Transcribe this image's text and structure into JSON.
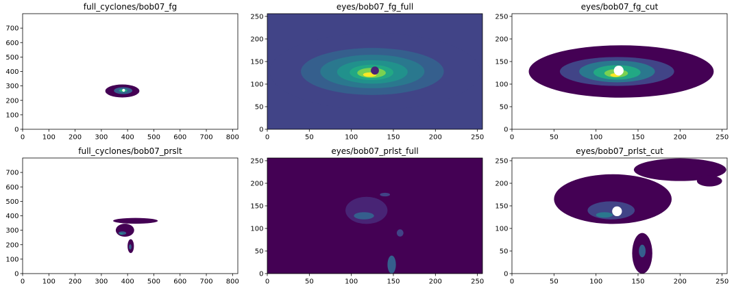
{
  "colors": {
    "background": "#ffffff",
    "axis": "#000000",
    "viridis_levels": [
      "#440154",
      "#482475",
      "#414487",
      "#355f8d",
      "#2a788e",
      "#21918c",
      "#22a884",
      "#44bf70",
      "#7ad151",
      "#bddf26",
      "#fde725"
    ]
  },
  "chart_data": [
    {
      "type": "contour",
      "title": "full_cyclones/bob07_fg",
      "xlabel": "",
      "ylabel": "",
      "xlim": [
        0,
        820
      ],
      "ylim": [
        0,
        800
      ],
      "xticks": [
        0,
        100,
        200,
        300,
        400,
        500,
        600,
        700,
        800
      ],
      "yticks": [
        0,
        100,
        200,
        300,
        400,
        500,
        600,
        700
      ],
      "background_fill": false,
      "blobs": [
        {
          "cx": 380,
          "cy": 265,
          "rx": 65,
          "ry": 45,
          "level": 0
        },
        {
          "cx": 383,
          "cy": 267,
          "rx": 35,
          "ry": 24,
          "level": 3
        },
        {
          "cx": 383,
          "cy": 268,
          "rx": 16,
          "ry": 11,
          "level": 6
        },
        {
          "cx": 384,
          "cy": 268,
          "rx": 6,
          "ry": 4,
          "level": 9
        }
      ],
      "eye": {
        "cx": 385,
        "cy": 270,
        "r": 3
      }
    },
    {
      "type": "contour",
      "title": "eyes/bob07_fg_full",
      "xlabel": "",
      "ylabel": "",
      "xlim": [
        0,
        256
      ],
      "ylim": [
        0,
        256
      ],
      "xticks": [
        0,
        50,
        100,
        150,
        200,
        250
      ],
      "yticks": [
        0,
        50,
        100,
        150,
        200,
        250
      ],
      "background_fill": true,
      "blobs": [
        {
          "cx": 128,
          "cy": 128,
          "rx": 125,
          "ry": 85,
          "level": 2
        },
        {
          "cx": 125,
          "cy": 128,
          "rx": 85,
          "ry": 52,
          "level": 3
        },
        {
          "cx": 125,
          "cy": 128,
          "rx": 62,
          "ry": 37,
          "level": 4
        },
        {
          "cx": 125,
          "cy": 127,
          "rx": 42,
          "ry": 26,
          "level": 5
        },
        {
          "cx": 124,
          "cy": 126,
          "rx": 26,
          "ry": 17,
          "level": 6
        },
        {
          "cx": 124,
          "cy": 125,
          "rx": 17,
          "ry": 11,
          "level": 8
        },
        {
          "cx": 122,
          "cy": 121,
          "rx": 8,
          "ry": 5,
          "level": 10
        }
      ],
      "eye": {
        "cx": 128,
        "cy": 130,
        "r": 4
      }
    },
    {
      "type": "contour",
      "title": "eyes/bob07_fg_cut",
      "xlabel": "",
      "ylabel": "",
      "xlim": [
        0,
        256
      ],
      "ylim": [
        0,
        256
      ],
      "xticks": [
        0,
        50,
        100,
        150,
        200,
        250
      ],
      "yticks": [
        0,
        50,
        100,
        150,
        200,
        250
      ],
      "background_fill": false,
      "blobs": [
        {
          "cx": 130,
          "cy": 128,
          "rx": 110,
          "ry": 58,
          "level": 0
        },
        {
          "cx": 125,
          "cy": 128,
          "rx": 68,
          "ry": 32,
          "level": 2
        },
        {
          "cx": 125,
          "cy": 128,
          "rx": 45,
          "ry": 24,
          "level": 4
        },
        {
          "cx": 125,
          "cy": 126,
          "rx": 28,
          "ry": 16,
          "level": 6
        },
        {
          "cx": 124,
          "cy": 124,
          "rx": 14,
          "ry": 9,
          "level": 8
        },
        {
          "cx": 123,
          "cy": 120,
          "rx": 6,
          "ry": 4,
          "level": 10
        }
      ],
      "eye": {
        "cx": 127,
        "cy": 130,
        "r": 5
      }
    },
    {
      "type": "contour",
      "title": "full_cyclones/bob07_prslt",
      "xlabel": "",
      "ylabel": "",
      "xlim": [
        0,
        820
      ],
      "ylim": [
        0,
        800
      ],
      "xticks": [
        0,
        100,
        200,
        300,
        400,
        500,
        600,
        700,
        800
      ],
      "yticks": [
        0,
        100,
        200,
        300,
        400,
        500,
        600,
        700
      ],
      "background_fill": false,
      "blobs": [
        {
          "cx": 430,
          "cy": 365,
          "rx": 85,
          "ry": 20,
          "level": 0
        },
        {
          "cx": 390,
          "cy": 300,
          "rx": 35,
          "ry": 45,
          "level": 0
        },
        {
          "cx": 412,
          "cy": 190,
          "rx": 12,
          "ry": 48,
          "level": 0
        },
        {
          "cx": 380,
          "cy": 280,
          "rx": 15,
          "ry": 12,
          "level": 3
        },
        {
          "cx": 376,
          "cy": 275,
          "rx": 6,
          "ry": 5,
          "level": 5
        },
        {
          "cx": 410,
          "cy": 185,
          "rx": 5,
          "ry": 18,
          "level": 3
        }
      ],
      "eye": null
    },
    {
      "type": "contour",
      "title": "eyes/bob07_prlst_full",
      "xlabel": "",
      "ylabel": "",
      "xlim": [
        0,
        256
      ],
      "ylim": [
        0,
        256
      ],
      "xticks": [
        0,
        50,
        100,
        150,
        200,
        250
      ],
      "yticks": [
        0,
        50,
        100,
        150,
        200,
        250
      ],
      "background_fill": true,
      "blobs": [
        {
          "cx": 118,
          "cy": 140,
          "rx": 25,
          "ry": 30,
          "level": 1
        },
        {
          "cx": 115,
          "cy": 128,
          "rx": 12,
          "ry": 8,
          "level": 3
        },
        {
          "cx": 140,
          "cy": 175,
          "rx": 6,
          "ry": 4,
          "level": 2
        },
        {
          "cx": 158,
          "cy": 90,
          "rx": 4,
          "ry": 8,
          "level": 2
        },
        {
          "cx": 148,
          "cy": 20,
          "rx": 5,
          "ry": 20,
          "level": 3
        }
      ],
      "eye": null
    },
    {
      "type": "contour",
      "title": "eyes/bob07_prlst_cut",
      "xlabel": "",
      "ylabel": "",
      "xlim": [
        0,
        256
      ],
      "ylim": [
        0,
        256
      ],
      "xticks": [
        0,
        50,
        100,
        150,
        200,
        250
      ],
      "yticks": [
        0,
        50,
        100,
        150,
        200,
        250
      ],
      "background_fill": false,
      "blobs": [
        {
          "cx": 120,
          "cy": 165,
          "rx": 70,
          "ry": 55,
          "level": 0
        },
        {
          "cx": 200,
          "cy": 230,
          "rx": 55,
          "ry": 25,
          "level": 0
        },
        {
          "cx": 235,
          "cy": 205,
          "rx": 15,
          "ry": 12,
          "level": 0
        },
        {
          "cx": 155,
          "cy": 45,
          "rx": 12,
          "ry": 45,
          "level": 0
        },
        {
          "cx": 118,
          "cy": 140,
          "rx": 28,
          "ry": 20,
          "level": 2
        },
        {
          "cx": 110,
          "cy": 130,
          "rx": 10,
          "ry": 6,
          "level": 4
        },
        {
          "cx": 155,
          "cy": 50,
          "rx": 4,
          "ry": 14,
          "level": 3
        }
      ],
      "eye": {
        "cx": 125,
        "cy": 138,
        "r": 5
      }
    }
  ]
}
